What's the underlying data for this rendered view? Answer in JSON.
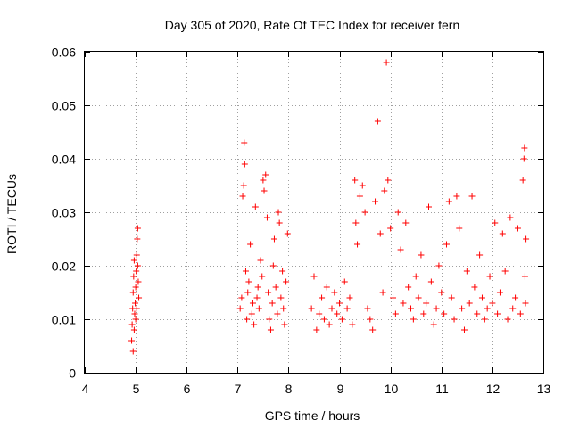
{
  "chart_data": {
    "type": "scatter",
    "title": "Day 305 of 2020, Rate Of TEC Index for receiver fern",
    "xlabel": "GPS time / hours",
    "ylabel": "ROTI / TECUs",
    "xlim": [
      4,
      13
    ],
    "ylim": [
      0,
      0.06
    ],
    "xticks": [
      4,
      5,
      6,
      7,
      8,
      9,
      10,
      11,
      12,
      13
    ],
    "xtick_labels": [
      "4",
      "5",
      "6",
      "7",
      "8",
      "9",
      "10",
      "11",
      "12",
      "13"
    ],
    "yticks": [
      0,
      0.01,
      0.02,
      0.03,
      0.04,
      0.05,
      0.06
    ],
    "ytick_labels": [
      "0",
      "0.01",
      "0.02",
      "0.03",
      "0.04",
      "0.05",
      "0.06"
    ],
    "grid": true,
    "marker": "+",
    "color": "#ff0000",
    "series": [
      {
        "name": "ROTI",
        "points": [
          [
            4.92,
            0.006
          ],
          [
            4.93,
            0.009
          ],
          [
            4.94,
            0.012
          ],
          [
            4.95,
            0.015
          ],
          [
            4.96,
            0.018
          ],
          [
            4.97,
            0.021
          ],
          [
            4.98,
            0.011
          ],
          [
            4.99,
            0.013
          ],
          [
            5.0,
            0.016
          ],
          [
            5.01,
            0.019
          ],
          [
            5.02,
            0.022
          ],
          [
            5.03,
            0.025
          ],
          [
            5.04,
            0.027
          ],
          [
            5.05,
            0.017
          ],
          [
            5.06,
            0.014
          ],
          [
            4.95,
            0.004
          ],
          [
            4.97,
            0.008
          ],
          [
            5.0,
            0.01
          ],
          [
            5.02,
            0.012
          ],
          [
            5.04,
            0.02
          ],
          [
            7.05,
            0.012
          ],
          [
            7.08,
            0.014
          ],
          [
            7.1,
            0.033
          ],
          [
            7.12,
            0.035
          ],
          [
            7.13,
            0.043
          ],
          [
            7.14,
            0.039
          ],
          [
            7.16,
            0.019
          ],
          [
            7.18,
            0.01
          ],
          [
            7.2,
            0.015
          ],
          [
            7.22,
            0.017
          ],
          [
            7.25,
            0.024
          ],
          [
            7.28,
            0.011
          ],
          [
            7.3,
            0.013
          ],
          [
            7.32,
            0.009
          ],
          [
            7.35,
            0.031
          ],
          [
            7.38,
            0.014
          ],
          [
            7.4,
            0.016
          ],
          [
            7.42,
            0.012
          ],
          [
            7.45,
            0.021
          ],
          [
            7.48,
            0.018
          ],
          [
            7.5,
            0.036
          ],
          [
            7.52,
            0.034
          ],
          [
            7.55,
            0.037
          ],
          [
            7.58,
            0.029
          ],
          [
            7.6,
            0.015
          ],
          [
            7.62,
            0.01
          ],
          [
            7.65,
            0.008
          ],
          [
            7.68,
            0.013
          ],
          [
            7.7,
            0.02
          ],
          [
            7.72,
            0.025
          ],
          [
            7.75,
            0.016
          ],
          [
            7.78,
            0.011
          ],
          [
            7.8,
            0.03
          ],
          [
            7.82,
            0.028
          ],
          [
            7.85,
            0.014
          ],
          [
            7.88,
            0.019
          ],
          [
            7.9,
            0.012
          ],
          [
            7.92,
            0.009
          ],
          [
            7.95,
            0.017
          ],
          [
            7.98,
            0.026
          ],
          [
            8.45,
            0.012
          ],
          [
            8.5,
            0.018
          ],
          [
            8.55,
            0.008
          ],
          [
            8.6,
            0.011
          ],
          [
            8.65,
            0.014
          ],
          [
            8.7,
            0.01
          ],
          [
            8.75,
            0.016
          ],
          [
            8.8,
            0.009
          ],
          [
            8.85,
            0.012
          ],
          [
            8.9,
            0.015
          ],
          [
            8.95,
            0.011
          ],
          [
            9.0,
            0.013
          ],
          [
            9.05,
            0.01
          ],
          [
            9.1,
            0.017
          ],
          [
            9.15,
            0.012
          ],
          [
            9.2,
            0.014
          ],
          [
            9.25,
            0.009
          ],
          [
            9.3,
            0.036
          ],
          [
            9.32,
            0.028
          ],
          [
            9.35,
            0.024
          ],
          [
            9.4,
            0.033
          ],
          [
            9.45,
            0.035
          ],
          [
            9.5,
            0.03
          ],
          [
            9.55,
            0.012
          ],
          [
            9.6,
            0.01
          ],
          [
            9.65,
            0.008
          ],
          [
            9.7,
            0.032
          ],
          [
            9.75,
            0.047
          ],
          [
            9.8,
            0.026
          ],
          [
            9.85,
            0.015
          ],
          [
            9.88,
            0.034
          ],
          [
            9.92,
            0.058
          ],
          [
            9.95,
            0.036
          ],
          [
            10.0,
            0.027
          ],
          [
            10.05,
            0.014
          ],
          [
            10.1,
            0.011
          ],
          [
            10.15,
            0.03
          ],
          [
            10.2,
            0.023
          ],
          [
            10.25,
            0.013
          ],
          [
            10.3,
            0.028
          ],
          [
            10.35,
            0.016
          ],
          [
            10.4,
            0.012
          ],
          [
            10.45,
            0.01
          ],
          [
            10.5,
            0.018
          ],
          [
            10.55,
            0.014
          ],
          [
            10.6,
            0.022
          ],
          [
            10.65,
            0.011
          ],
          [
            10.7,
            0.013
          ],
          [
            10.75,
            0.031
          ],
          [
            10.8,
            0.017
          ],
          [
            10.85,
            0.009
          ],
          [
            10.9,
            0.012
          ],
          [
            10.95,
            0.02
          ],
          [
            11.0,
            0.015
          ],
          [
            11.05,
            0.011
          ],
          [
            11.1,
            0.024
          ],
          [
            11.15,
            0.032
          ],
          [
            11.2,
            0.014
          ],
          [
            11.25,
            0.01
          ],
          [
            11.3,
            0.033
          ],
          [
            11.35,
            0.027
          ],
          [
            11.4,
            0.012
          ],
          [
            11.45,
            0.008
          ],
          [
            11.5,
            0.019
          ],
          [
            11.55,
            0.013
          ],
          [
            11.6,
            0.033
          ],
          [
            11.65,
            0.016
          ],
          [
            11.7,
            0.011
          ],
          [
            11.75,
            0.022
          ],
          [
            11.8,
            0.014
          ],
          [
            11.85,
            0.01
          ],
          [
            11.9,
            0.012
          ],
          [
            11.95,
            0.018
          ],
          [
            12.0,
            0.013
          ],
          [
            12.05,
            0.028
          ],
          [
            12.1,
            0.011
          ],
          [
            12.15,
            0.015
          ],
          [
            12.2,
            0.026
          ],
          [
            12.25,
            0.019
          ],
          [
            12.3,
            0.01
          ],
          [
            12.35,
            0.029
          ],
          [
            12.4,
            0.012
          ],
          [
            12.45,
            0.014
          ],
          [
            12.5,
            0.027
          ],
          [
            12.55,
            0.011
          ],
          [
            12.6,
            0.036
          ],
          [
            12.62,
            0.04
          ],
          [
            12.63,
            0.042
          ],
          [
            12.64,
            0.018
          ],
          [
            12.65,
            0.013
          ],
          [
            12.66,
            0.025
          ]
        ]
      }
    ]
  }
}
